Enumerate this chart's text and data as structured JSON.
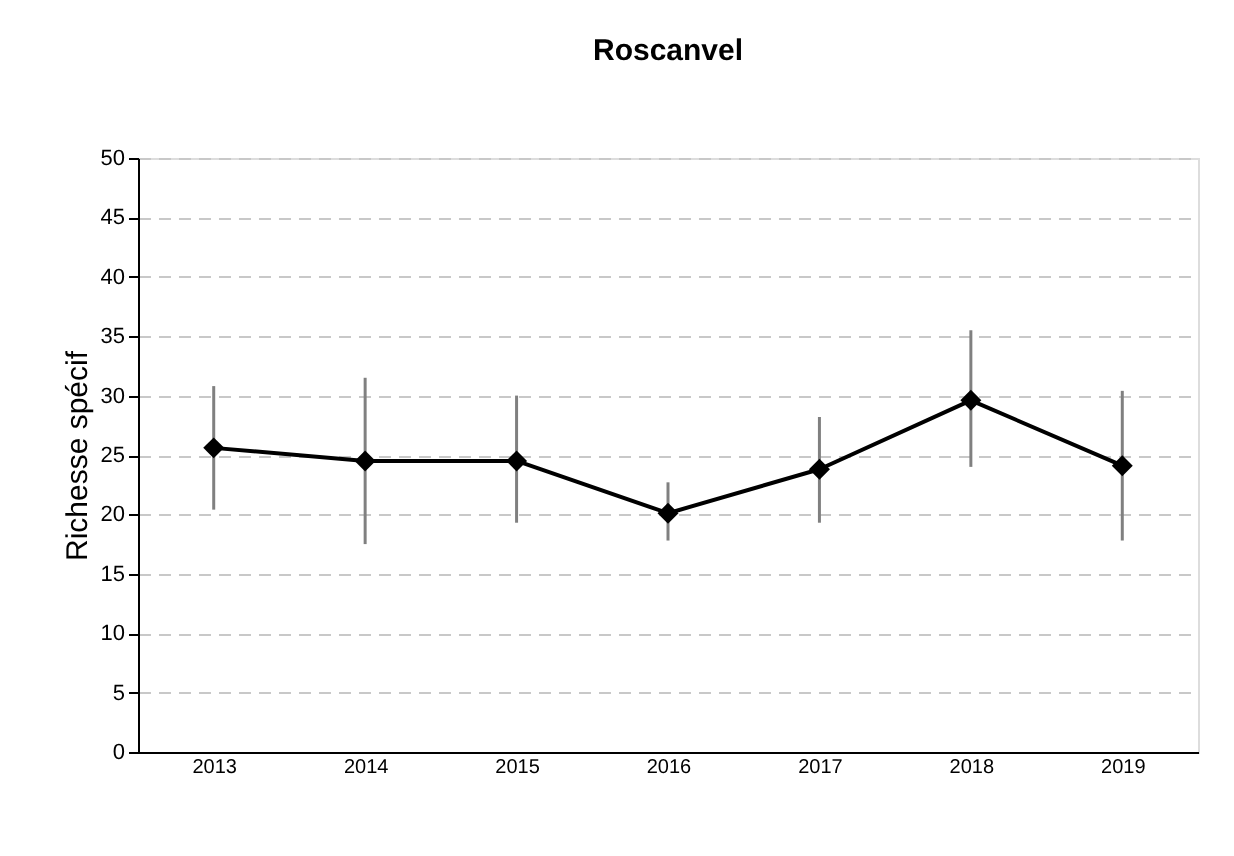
{
  "chart_data": {
    "type": "line",
    "title": "Roscanvel",
    "ylabel": "Richesse spécif",
    "categories": [
      "2013",
      "2014",
      "2015",
      "2016",
      "2017",
      "2018",
      "2019"
    ],
    "series": [
      {
        "color": "#000000",
        "values": [
          25.6,
          24.5,
          24.5,
          20.1,
          23.8,
          29.6,
          24.1
        ],
        "errors": [
          [
            20.4,
            30.8
          ],
          [
            17.5,
            31.5
          ],
          [
            19.3,
            30.0
          ],
          [
            17.8,
            22.7
          ],
          [
            19.3,
            28.2
          ],
          [
            24.0,
            35.5
          ],
          [
            17.8,
            30.4
          ]
        ]
      }
    ],
    "ylim": [
      0,
      50
    ],
    "yticks": [
      0,
      5,
      10,
      15,
      20,
      25,
      30,
      35,
      40,
      45,
      50
    ],
    "grid": "y",
    "marker": "diamond",
    "line_style": "solid"
  }
}
